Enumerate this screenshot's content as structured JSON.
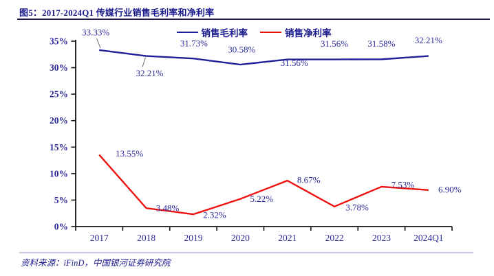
{
  "figure": {
    "title": "图5：2017-2024Q1 传媒行业销售毛利率和净利率",
    "source": "资料来源：iFinD，中国银河证券研究院"
  },
  "chart_data": {
    "type": "line",
    "title": "2017-2024Q1 传媒行业销售毛利率和净利率",
    "categories": [
      "2017",
      "2018",
      "2019",
      "2020",
      "2021",
      "2022",
      "2023",
      "2024Q1"
    ],
    "series": [
      {
        "name": "销售毛利率",
        "color": "#20209B",
        "values": [
          33.33,
          32.21,
          31.73,
          30.58,
          31.56,
          31.56,
          31.58,
          32.21
        ],
        "labels": [
          "33.33%",
          "32.21%",
          "31.73%",
          "30.58%",
          "31.56%",
          "31.56%",
          "31.58%",
          "32.21%"
        ]
      },
      {
        "name": "销售净利率",
        "color": "#EE1111",
        "values": [
          13.55,
          3.48,
          2.32,
          5.22,
          8.67,
          3.78,
          7.53,
          6.9
        ],
        "labels": [
          "13.55%",
          "3.48%",
          "2.32%",
          "5.22%",
          "8.67%",
          "3.78%",
          "7.53%",
          "6.90%"
        ]
      }
    ],
    "ylim": [
      0,
      35
    ],
    "ytick_step": 5,
    "ytick_labels": [
      "0%",
      "5%",
      "10%",
      "15%",
      "20%",
      "25%",
      "30%",
      "35%"
    ],
    "xlabel": "",
    "ylabel": "",
    "grid": false,
    "legend_position": "top-center",
    "colors": {
      "label_text": "#2B2B9B",
      "axis": "#111111",
      "title_text": "#1A1A8E",
      "rule": "#1B1B4E",
      "separator": "#C9C6E2",
      "leader_line": "#666666"
    }
  }
}
